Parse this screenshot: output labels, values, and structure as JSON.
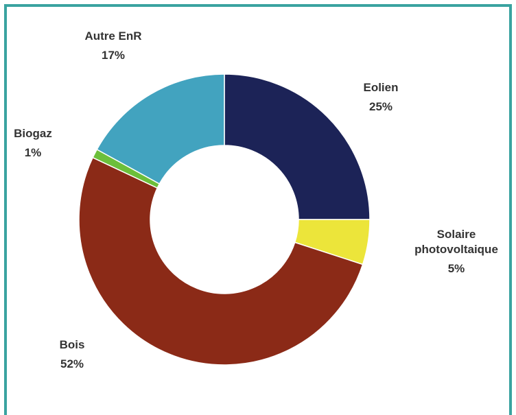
{
  "chart_data": {
    "type": "donut",
    "categories": [
      "Eolien",
      "Solaire photovoltaique",
      "Bois",
      "Biogaz",
      "Autre EnR"
    ],
    "values": [
      25,
      5,
      52,
      1,
      17
    ],
    "value_labels": [
      "25%",
      "5%",
      "52%",
      "1%",
      "17%"
    ],
    "colors": [
      "#1c2357",
      "#ece53a",
      "#8b2a17",
      "#6cbf3a",
      "#42a3bf"
    ]
  }
}
